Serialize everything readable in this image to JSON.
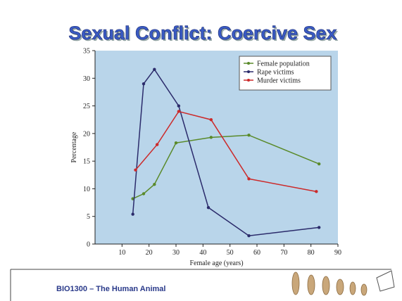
{
  "title": "Sexual Conflict: Coercive Sex",
  "footer": "BIO1300 – The Human Animal",
  "chart_data": {
    "type": "line",
    "xlabel": "Female age (years)",
    "ylabel": "Percentage",
    "xlim": [
      0,
      90
    ],
    "ylim": [
      0,
      35
    ],
    "xticks": [
      10,
      20,
      30,
      40,
      50,
      60,
      70,
      80,
      90
    ],
    "yticks": [
      0,
      5,
      10,
      15,
      20,
      25,
      30,
      35
    ],
    "legend": "upper right",
    "series": [
      {
        "name": "Female population",
        "color": "#5a8a2a",
        "x": [
          14,
          18,
          22,
          30,
          43,
          57,
          83
        ],
        "values": [
          8.2,
          9.1,
          10.8,
          18.3,
          19.3,
          19.7,
          14.5
        ]
      },
      {
        "name": "Rape victims",
        "color": "#2b2b6b",
        "x": [
          14,
          18,
          22,
          31,
          42,
          57,
          83
        ],
        "values": [
          5.4,
          29,
          31.6,
          25,
          6.6,
          1.5,
          3
        ]
      },
      {
        "name": "Murder victims",
        "color": "#cc2a2a",
        "x": [
          15,
          23,
          31,
          43,
          57,
          82
        ],
        "values": [
          13.4,
          18,
          24,
          22.5,
          11.8,
          9.5
        ]
      }
    ]
  }
}
